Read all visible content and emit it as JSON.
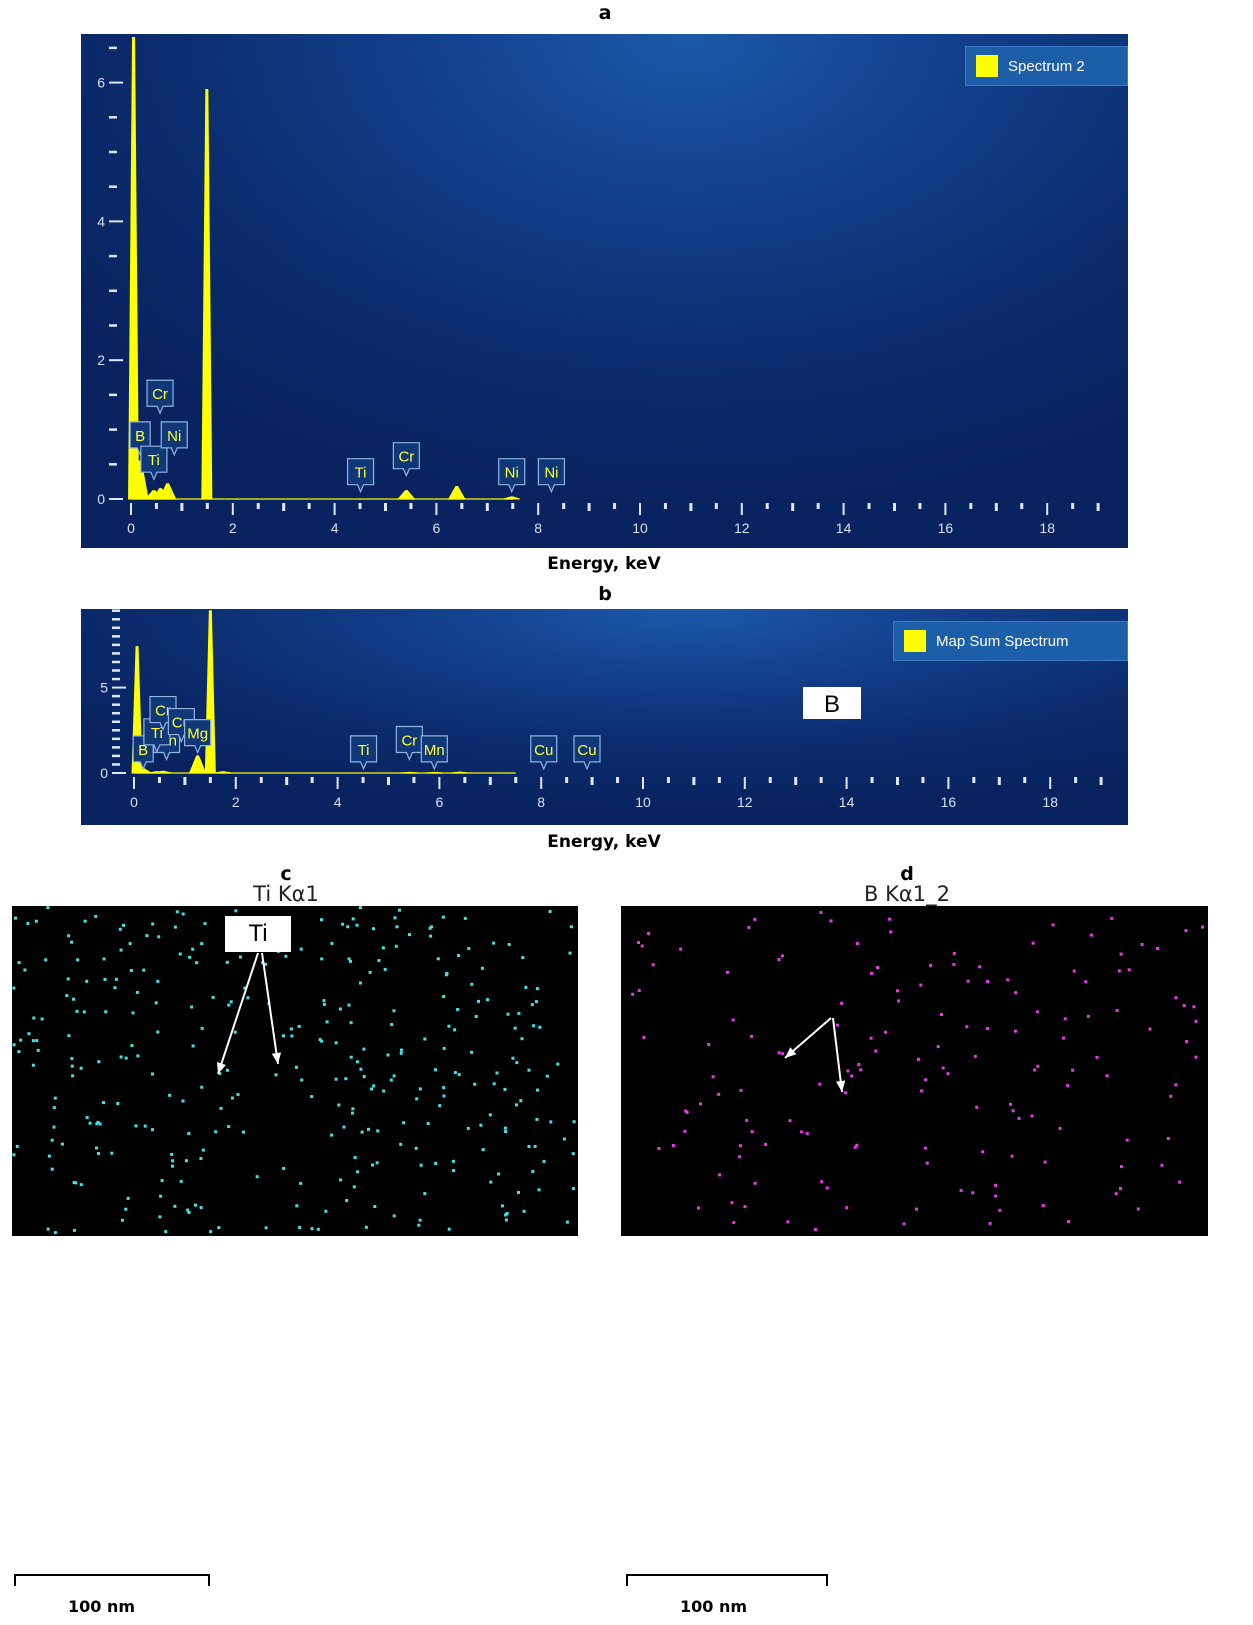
{
  "chart_data": [
    {
      "panel_label": "a",
      "type": "line",
      "xlabel": "Energy, keV",
      "xlim": [
        -0.3,
        19.4
      ],
      "ylim": [
        0,
        6.7
      ],
      "x_ticks": [
        0,
        2,
        4,
        6,
        8,
        10,
        12,
        14,
        16,
        18
      ],
      "y_ticks": [
        0,
        2,
        4,
        6
      ],
      "y_minor_step": 0.5,
      "series": [
        {
          "name": "Spectrum 2",
          "color": "#ffff00",
          "peaks": [
            {
              "x": 0.05,
              "y": 6.65
            },
            {
              "x": 0.18,
              "y": 0.55
            },
            {
              "x": 0.45,
              "y": 0.12
            },
            {
              "x": 0.58,
              "y": 0.15
            },
            {
              "x": 0.72,
              "y": 0.22
            },
            {
              "x": 1.49,
              "y": 5.9
            },
            {
              "x": 5.41,
              "y": 0.12
            },
            {
              "x": 6.4,
              "y": 0.18
            },
            {
              "x": 7.48,
              "y": 0.03
            }
          ]
        }
      ],
      "annotations": [
        {
          "text": "B",
          "x": 0.18,
          "level": 0.65
        },
        {
          "text": "Ti",
          "x": 0.45,
          "level": 0.3
        },
        {
          "text": "Cr",
          "x": 0.57,
          "level": 1.25
        },
        {
          "text": "Ni",
          "x": 0.85,
          "level": 0.65
        },
        {
          "text": "Ti",
          "x": 4.51,
          "level": 0.12
        },
        {
          "text": "Cr",
          "x": 5.41,
          "level": 0.35
        },
        {
          "text": "Ni",
          "x": 7.48,
          "level": 0.12
        },
        {
          "text": "Ni",
          "x": 8.26,
          "level": 0.12
        }
      ]
    },
    {
      "panel_label": "b",
      "type": "line",
      "xlabel": "Energy, keV",
      "xlim": [
        -0.3,
        19.4
      ],
      "ylim": [
        0,
        9.6
      ],
      "x_ticks": [
        0,
        2,
        4,
        6,
        8,
        10,
        12,
        14,
        16,
        18
      ],
      "y_ticks": [
        0,
        5
      ],
      "y_minor_step": 0.5,
      "series": [
        {
          "name": "Map Sum Spectrum",
          "color": "#ffff00",
          "peaks": [
            {
              "x": 0.06,
              "y": 7.4
            },
            {
              "x": 0.18,
              "y": 0.25
            },
            {
              "x": 0.45,
              "y": 0.08
            },
            {
              "x": 0.57,
              "y": 0.1
            },
            {
              "x": 1.25,
              "y": 1.0
            },
            {
              "x": 1.5,
              "y": 9.5
            },
            {
              "x": 1.75,
              "y": 0.07
            },
            {
              "x": 5.41,
              "y": 0.04
            },
            {
              "x": 5.9,
              "y": 0.04
            },
            {
              "x": 6.4,
              "y": 0.05
            }
          ]
        }
      ],
      "annotations": [
        {
          "text": "B",
          "x": 0.18,
          "level": 0.3
        },
        {
          "text": "Mn",
          "x": 0.64,
          "level": 0.85
        },
        {
          "text": "Ti",
          "x": 0.45,
          "level": 1.3
        },
        {
          "text": "Cr",
          "x": 0.57,
          "level": 2.6
        },
        {
          "text": "Cu",
          "x": 0.93,
          "level": 1.9
        },
        {
          "text": "Mg",
          "x": 1.25,
          "level": 1.25
        },
        {
          "text": "Ti",
          "x": 4.51,
          "level": 0.3
        },
        {
          "text": "Cr",
          "x": 5.41,
          "level": 0.85
        },
        {
          "text": "Mn",
          "x": 5.9,
          "level": 0.3
        },
        {
          "text": "Cu",
          "x": 8.05,
          "level": 0.3
        },
        {
          "text": "Cu",
          "x": 8.9,
          "level": 0.3
        }
      ]
    }
  ],
  "maps": [
    {
      "panel_label": "c",
      "title": "Ti Kα1",
      "dot_color": "#3ee4e8",
      "callout": "Ti",
      "scale_label": "100 nm"
    },
    {
      "panel_label": "d",
      "title": "B Kα1_2",
      "dot_color": "#e838e8",
      "callout": "B",
      "scale_label": "100 nm"
    }
  ]
}
